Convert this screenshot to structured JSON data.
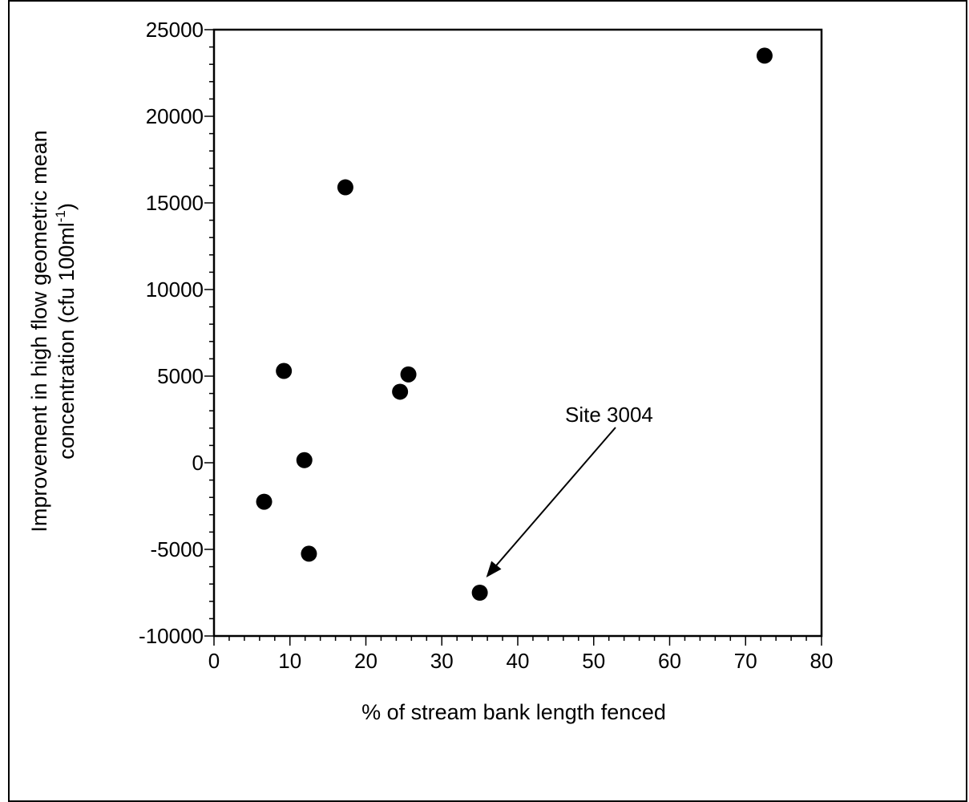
{
  "chart_data": {
    "type": "scatter",
    "title": "",
    "xlabel": "% of stream bank length fenced",
    "ylabel_line1": "Improvement in high flow geometric mean",
    "ylabel_line2_main": "concentration (cfu 100ml",
    "ylabel_line2_sup": "-1",
    "ylabel_line2_end": ")",
    "xlim": [
      0,
      80
    ],
    "ylim": [
      -10000,
      25000
    ],
    "x_ticks": [
      0,
      10,
      20,
      30,
      40,
      50,
      60,
      70,
      80
    ],
    "y_ticks": [
      -10000,
      -5000,
      0,
      5000,
      10000,
      15000,
      20000,
      25000
    ],
    "grid": false,
    "points": [
      {
        "x": 72.5,
        "y": 23500
      },
      {
        "x": 17.3,
        "y": 15900
      },
      {
        "x": 9.2,
        "y": 5300
      },
      {
        "x": 25.6,
        "y": 5100
      },
      {
        "x": 24.5,
        "y": 4100
      },
      {
        "x": 11.9,
        "y": 150
      },
      {
        "x": 6.6,
        "y": -2250
      },
      {
        "x": 12.5,
        "y": -5250
      },
      {
        "x": 35.0,
        "y": -7500
      }
    ],
    "annotation": {
      "text": "Site 3004",
      "target_x": 35.0,
      "target_y": -7500
    }
  }
}
